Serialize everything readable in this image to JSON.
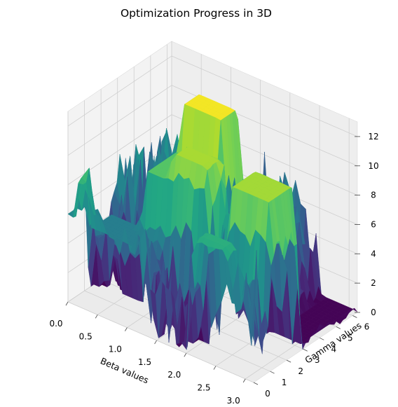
{
  "chart_data": {
    "type": "surface3d",
    "title": "Optimization Progress in 3D",
    "xlabel": "Beta values",
    "ylabel": "Gamma values",
    "zlabel": "",
    "xlim": [
      0,
      3.14
    ],
    "ylim": [
      0,
      6.28
    ],
    "zlim": [
      0,
      13
    ],
    "xticks": [
      "0.0",
      "0.5",
      "1.0",
      "1.5",
      "2.0",
      "2.5",
      "3.0"
    ],
    "yticks": [
      "0",
      "1",
      "2",
      "3",
      "4",
      "5",
      "6"
    ],
    "zticks": [
      "0",
      "2",
      "4",
      "6",
      "8",
      "10",
      "12"
    ],
    "colormap": "viridis",
    "grid": true,
    "surface_regions": [
      {
        "beta": [
          0.0,
          0.05
        ],
        "gamma": [
          0.0,
          0.8
        ],
        "z": 6.0
      },
      {
        "beta": [
          0.35,
          1.05
        ],
        "gamma": [
          0.2,
          1.4
        ],
        "z": 5.5
      },
      {
        "beta": [
          0.95,
          1.65
        ],
        "gamma": [
          1.4,
          3.5
        ],
        "z": 9.5
      },
      {
        "beta": [
          1.05,
          1.65
        ],
        "gamma": [
          3.3,
          4.3
        ],
        "z": 12.8
      },
      {
        "beta": [
          1.35,
          1.9
        ],
        "gamma": [
          1.5,
          2.3
        ],
        "z": 11.3
      },
      {
        "beta": [
          2.2,
          2.65
        ],
        "gamma": [
          0.05,
          0.6
        ],
        "z": 8.2
      },
      {
        "beta": [
          2.45,
          3.05
        ],
        "gamma": [
          1.2,
          2.6
        ],
        "z": 11.2
      },
      {
        "beta": [
          2.6,
          3.1
        ],
        "gamma": [
          3.0,
          6.28
        ],
        "z": 0.1
      }
    ]
  }
}
